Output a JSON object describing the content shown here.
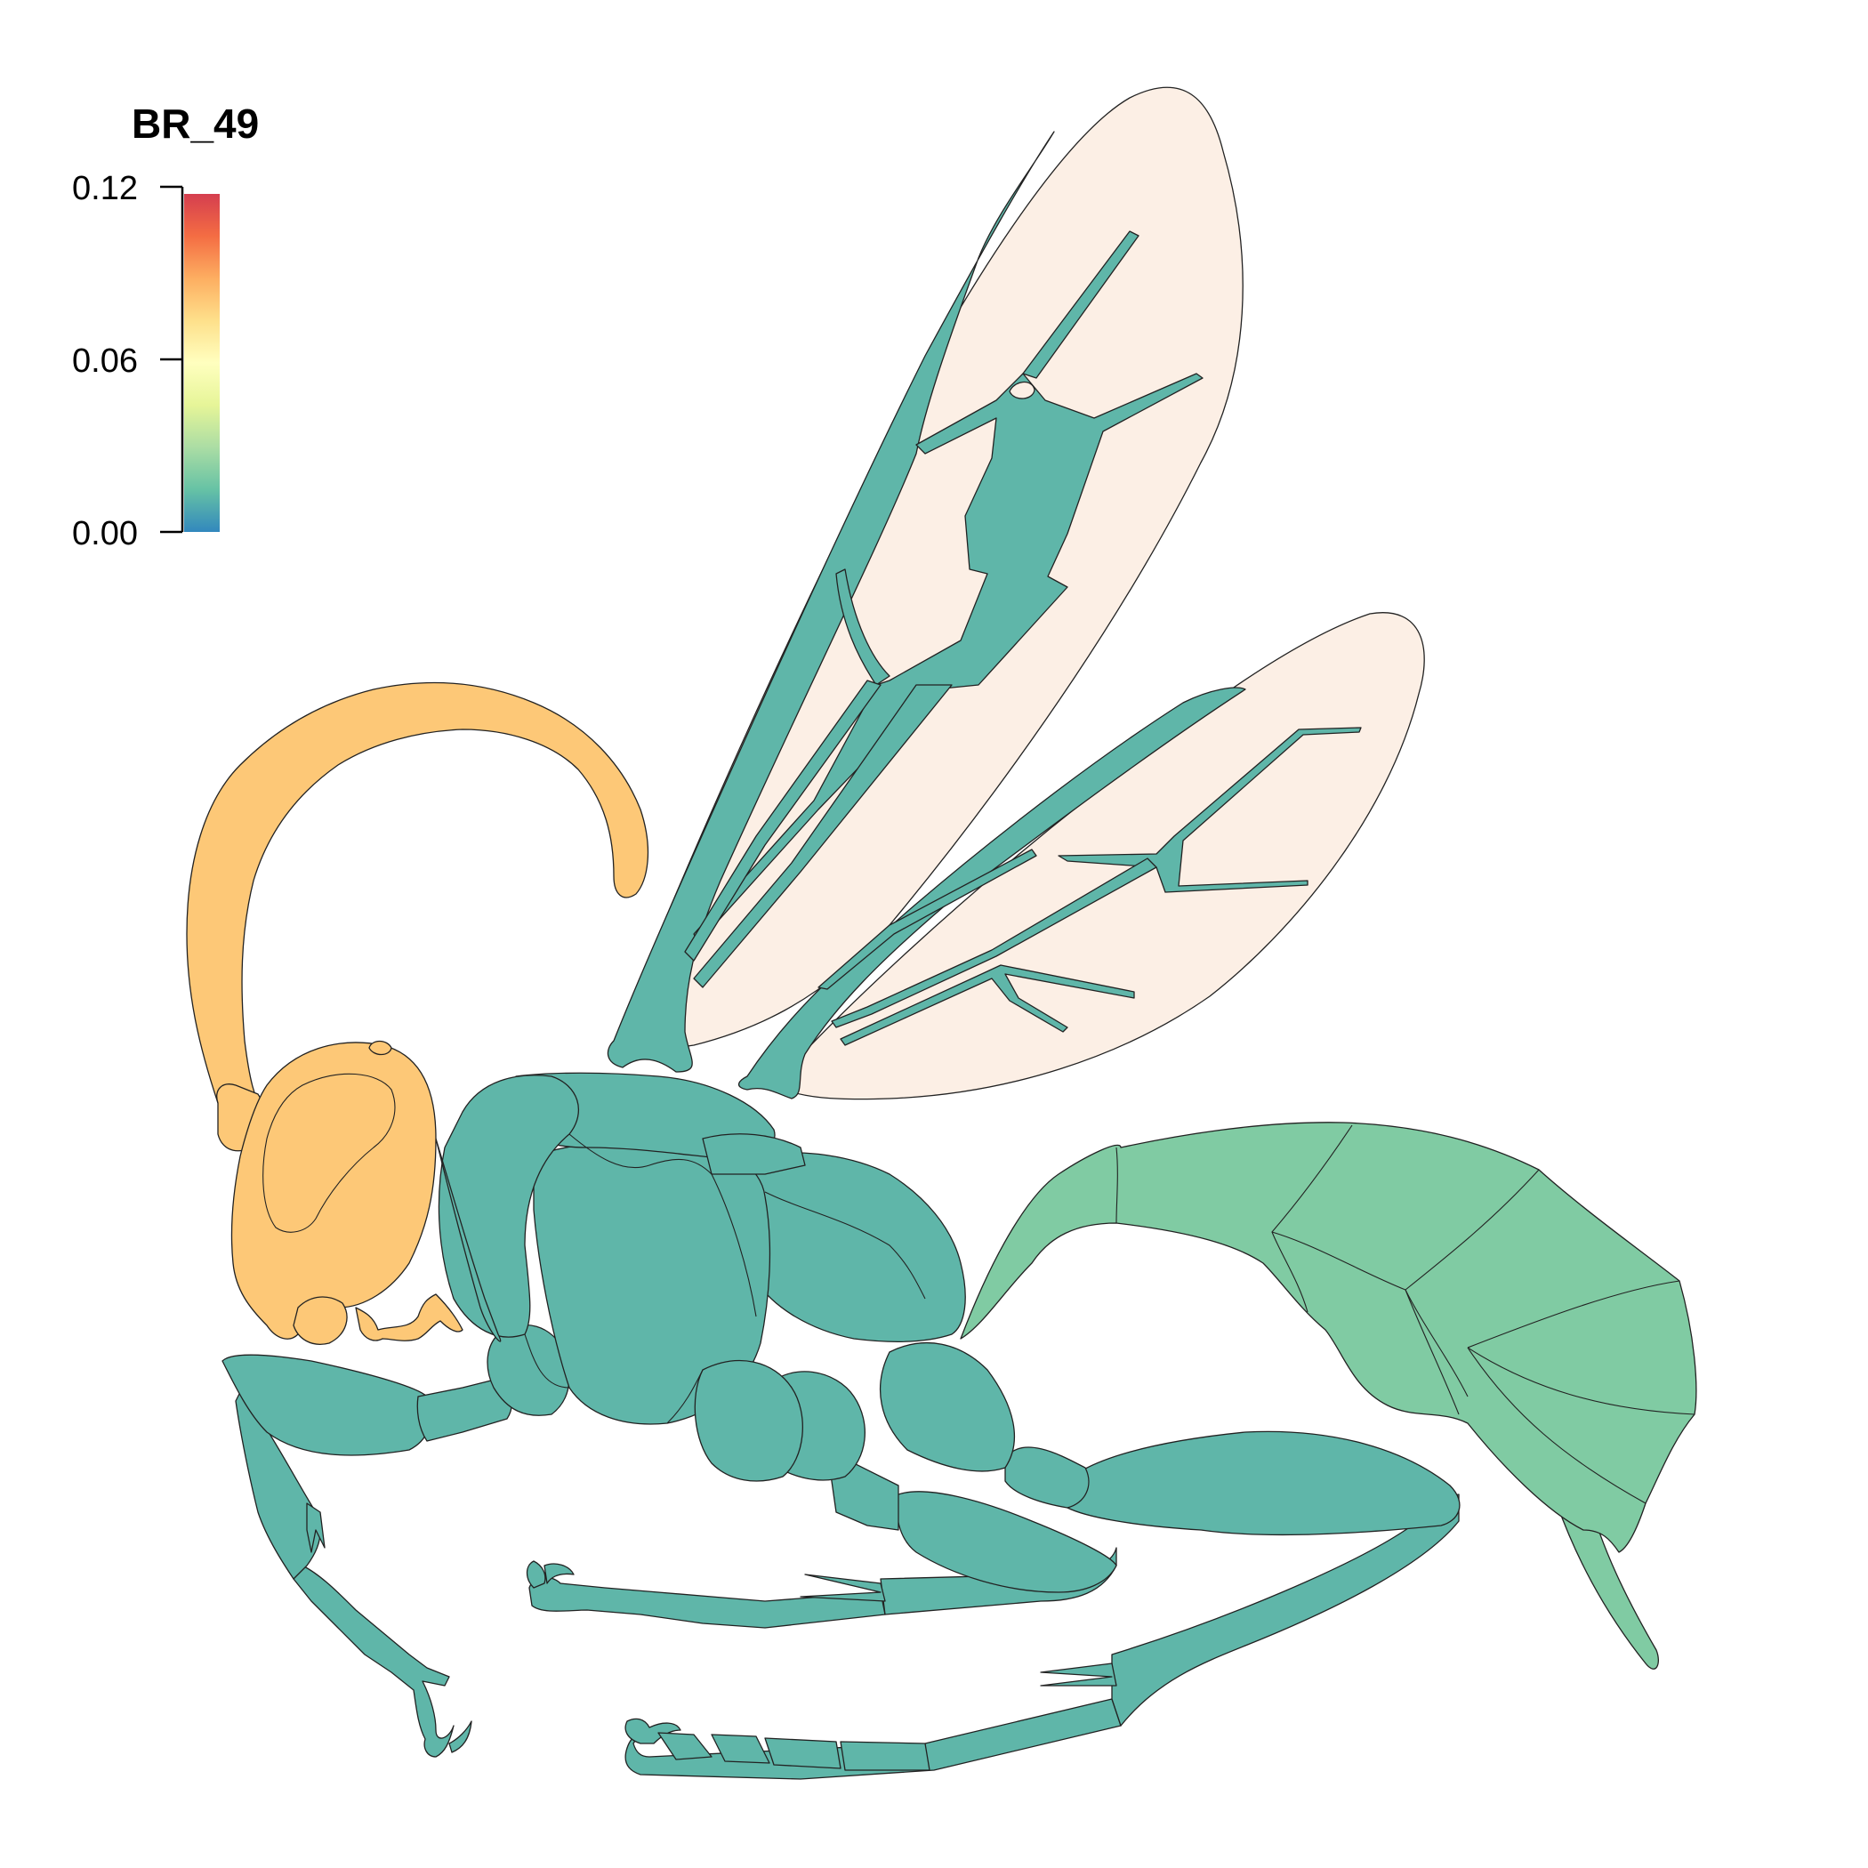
{
  "legend": {
    "title": "BR_49",
    "ticks": [
      "0.12",
      "0.06",
      "0.00"
    ],
    "range": [
      0.0,
      0.12
    ],
    "gradient_colors": [
      "#3288bd",
      "#66c2a5",
      "#abdda4",
      "#e6f598",
      "#ffffbf",
      "#fee08b",
      "#fdae61",
      "#f46d43",
      "#d53e4f"
    ]
  },
  "colors": {
    "head_antenna": "#fdc877",
    "thorax_legs": "#5fb6a9",
    "gaster": "#80cba3",
    "wings": "#fcefe5",
    "outline": "#222222"
  }
}
